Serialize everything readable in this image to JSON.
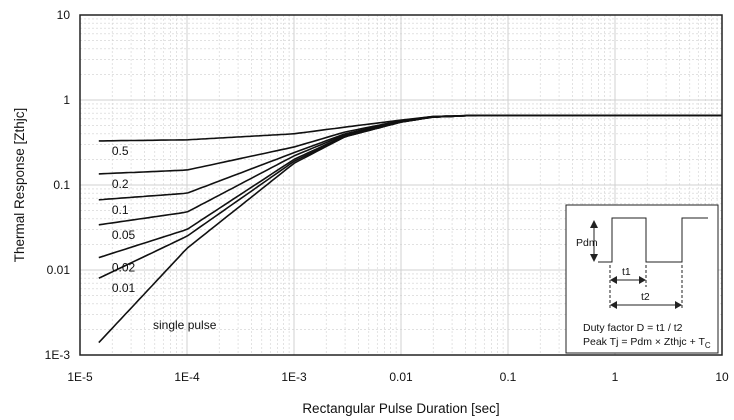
{
  "chart_data": {
    "type": "line",
    "xlabel": "Rectangular Pulse Duration [sec]",
    "ylabel": "Thermal Response [Zthjc]",
    "x_scale": "log",
    "y_scale": "log",
    "xlim": [
      1e-05,
      10
    ],
    "ylim": [
      0.001,
      10
    ],
    "x_ticks": [
      "1E-5",
      "1E-4",
      "1E-3",
      "0.01",
      "0.1",
      "1",
      "10"
    ],
    "y_ticks": [
      "1E-3",
      "0.01",
      "0.1",
      "1",
      "10"
    ],
    "grid": true,
    "series": [
      {
        "name": "0.5",
        "color": "#111111",
        "x": [
          1.5e-05,
          0.0001,
          0.001,
          0.003,
          0.01,
          0.02,
          0.05,
          0.1,
          1,
          10
        ],
        "y": [
          0.33,
          0.34,
          0.4,
          0.48,
          0.58,
          0.64,
          0.66,
          0.66,
          0.66,
          0.66
        ]
      },
      {
        "name": "0.2",
        "color": "#111111",
        "x": [
          1.5e-05,
          0.0001,
          0.001,
          0.003,
          0.01,
          0.02,
          0.05,
          0.1,
          1,
          10
        ],
        "y": [
          0.135,
          0.15,
          0.28,
          0.42,
          0.57,
          0.64,
          0.66,
          0.66,
          0.66,
          0.66
        ]
      },
      {
        "name": "0.1",
        "color": "#111111",
        "x": [
          1.5e-05,
          0.0001,
          0.001,
          0.003,
          0.01,
          0.02,
          0.05,
          0.1,
          1,
          10
        ],
        "y": [
          0.067,
          0.08,
          0.24,
          0.4,
          0.56,
          0.63,
          0.66,
          0.66,
          0.66,
          0.66
        ]
      },
      {
        "name": "0.05",
        "color": "#111111",
        "x": [
          1.5e-05,
          0.0001,
          0.001,
          0.003,
          0.01,
          0.02,
          0.05,
          0.1,
          1,
          10
        ],
        "y": [
          0.034,
          0.048,
          0.22,
          0.39,
          0.56,
          0.63,
          0.66,
          0.66,
          0.66,
          0.66
        ]
      },
      {
        "name": "0.02",
        "color": "#111111",
        "x": [
          1.5e-05,
          0.0001,
          0.001,
          0.003,
          0.01,
          0.02,
          0.05,
          0.1,
          1,
          10
        ],
        "y": [
          0.014,
          0.03,
          0.2,
          0.38,
          0.55,
          0.63,
          0.66,
          0.66,
          0.66,
          0.66
        ]
      },
      {
        "name": "0.01",
        "color": "#111111",
        "x": [
          1.5e-05,
          0.0001,
          0.001,
          0.003,
          0.01,
          0.02,
          0.05,
          0.1,
          1,
          10
        ],
        "y": [
          0.008,
          0.025,
          0.19,
          0.37,
          0.55,
          0.63,
          0.66,
          0.66,
          0.66,
          0.66
        ]
      },
      {
        "name": "single pulse",
        "color": "#111111",
        "x": [
          1.5e-05,
          0.0001,
          0.001,
          0.003,
          0.01,
          0.02,
          0.05,
          0.1,
          1,
          10
        ],
        "y": [
          0.0014,
          0.018,
          0.18,
          0.37,
          0.55,
          0.63,
          0.66,
          0.66,
          0.66,
          0.66
        ]
      }
    ],
    "inset": {
      "pdm_label": "Pdm",
      "t1_label": "t1",
      "t2_label": "t2",
      "duty_text": "Duty factor D = t1 / t2",
      "peak_text": "Peak Tj = Pdm × Zthjc + T",
      "peak_subscript": "C"
    }
  }
}
